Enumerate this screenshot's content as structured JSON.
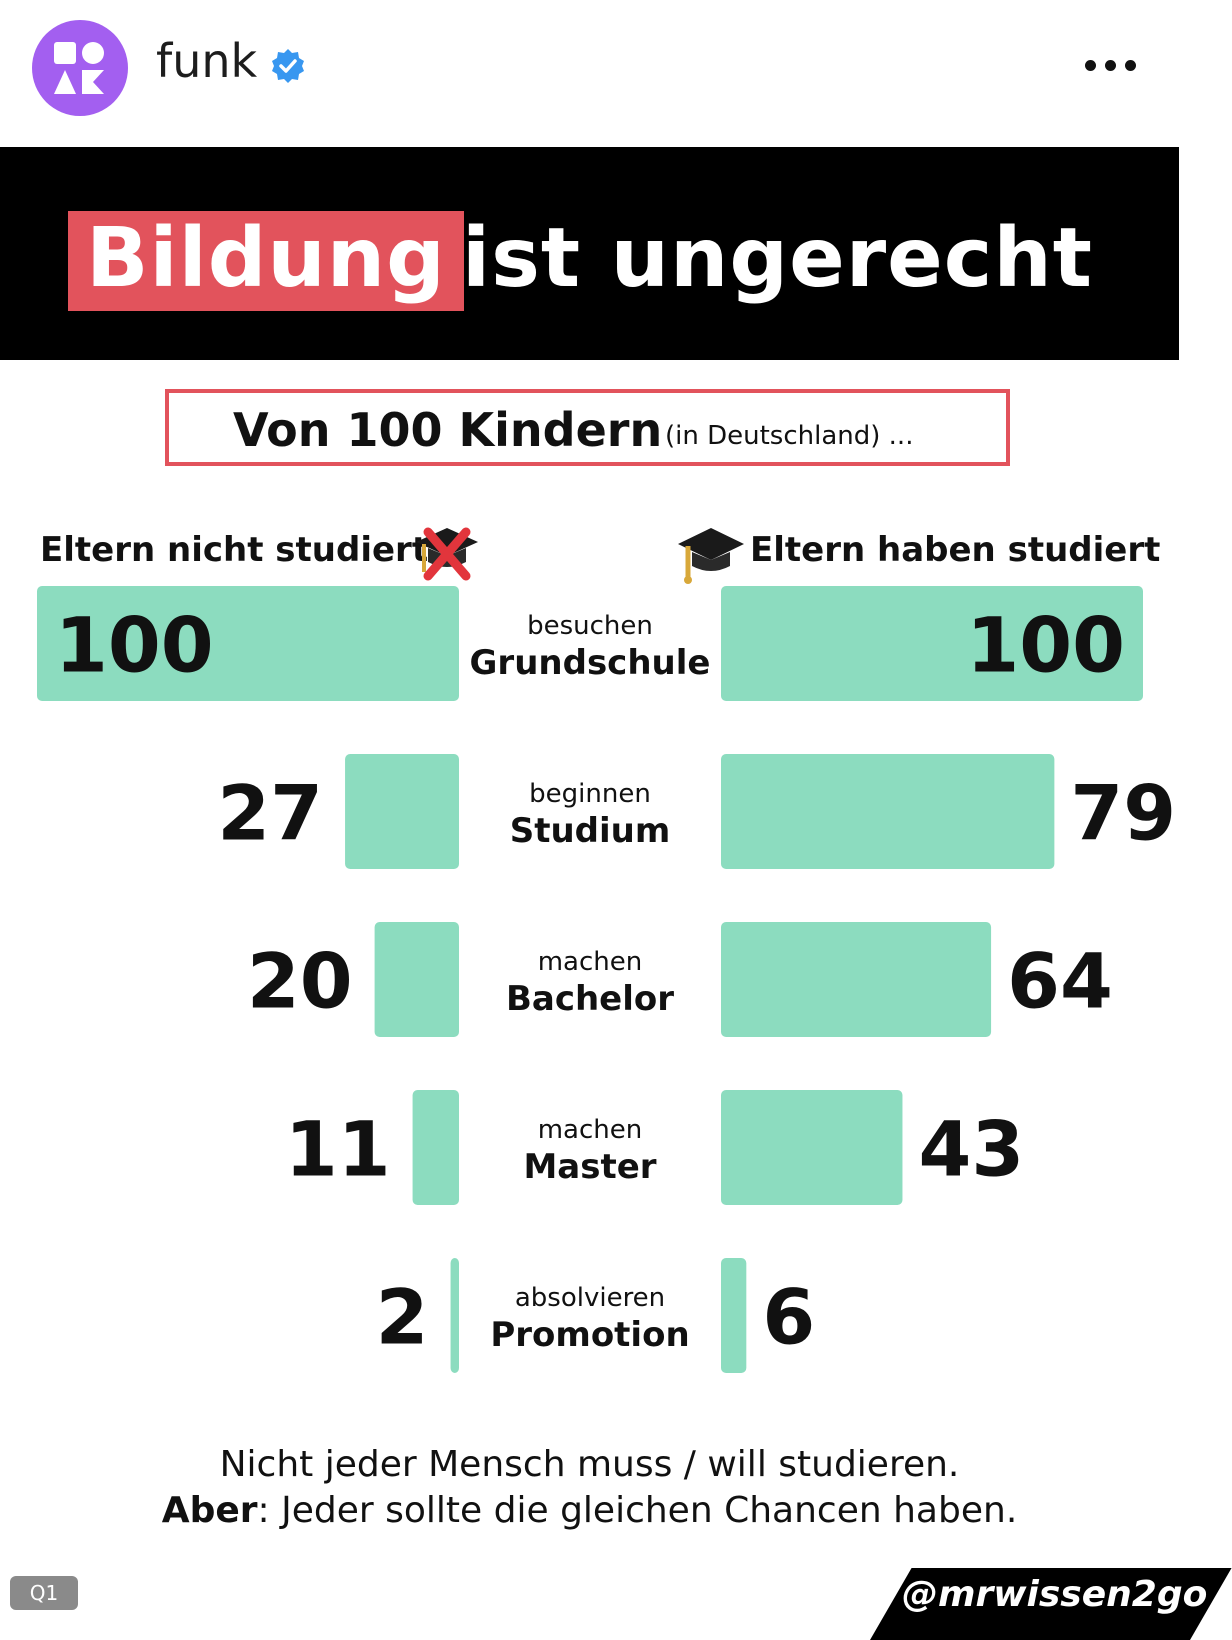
{
  "header": {
    "account_name": "funk",
    "verified_icon": "verified-badge-icon",
    "more_icon": "more-dots-icon"
  },
  "banner": {
    "title_highlight": "Bildung",
    "title_rest": "ist ungerecht",
    "highlight_color": "#e2535c"
  },
  "subtitle": {
    "main": "Von 100 Kindern",
    "note": "(in Deutschland) ..."
  },
  "side_headers": {
    "left": "Eltern nicht studiert",
    "left_icon": "graduation-cap-crossed-icon",
    "right": "Eltern haben studiert",
    "right_icon": "graduation-cap-icon"
  },
  "chart_data": {
    "type": "bar",
    "orientation": "horizontal-diverging",
    "title": "Bildung ist ungerecht",
    "subtitle": "Von 100 Kindern (in Deutschland) ...",
    "categories": [
      {
        "verb": "besuchen",
        "name": "Grundschule"
      },
      {
        "verb": "beginnen",
        "name": "Studium"
      },
      {
        "verb": "machen",
        "name": "Bachelor"
      },
      {
        "verb": "machen",
        "name": "Master"
      },
      {
        "verb": "absolvieren",
        "name": "Promotion"
      }
    ],
    "series": [
      {
        "name": "Eltern nicht studiert",
        "side": "left",
        "values": [
          100,
          27,
          20,
          11,
          2
        ]
      },
      {
        "name": "Eltern haben studiert",
        "side": "right",
        "values": [
          100,
          79,
          64,
          43,
          6
        ]
      }
    ],
    "xlim": [
      0,
      100
    ],
    "bar_color": "#8cdcbf",
    "grid": false
  },
  "footer": {
    "line1": "Nicht jeder Mensch muss / will studieren.",
    "line2_bold": "Aber",
    "line2_rest": ": Jeder sollte die gleichen Chancen haben.",
    "badge": "Q1",
    "handle": "@mrwissen2go"
  }
}
